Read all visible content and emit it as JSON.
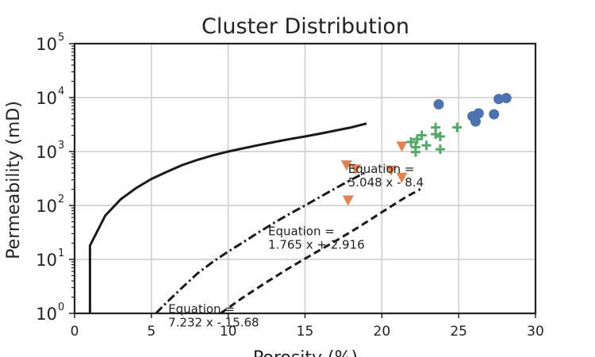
{
  "chart_data": {
    "type": "scatter",
    "title": "Cluster Distribution",
    "xlabel": "Porosity (%)",
    "ylabel": "Permeability (mD)",
    "xlim": [
      0,
      30
    ],
    "ylim": [
      1,
      100000
    ],
    "yscale": "log",
    "xticks": [
      "0",
      "5",
      "10",
      "15",
      "20",
      "25",
      "30"
    ],
    "yticks": [
      {
        "base": "10",
        "exp": "0"
      },
      {
        "base": "10",
        "exp": "1"
      },
      {
        "base": "10",
        "exp": "2"
      },
      {
        "base": "10",
        "exp": "3"
      },
      {
        "base": "10",
        "exp": "4"
      },
      {
        "base": "10",
        "exp": "5"
      }
    ],
    "grid": true,
    "series": [
      {
        "marker": "circle",
        "color": "#4c72b0",
        "points": [
          [
            23.7,
            7500
          ],
          [
            25.9,
            4500
          ],
          [
            26.1,
            3600
          ],
          [
            26.3,
            5100
          ],
          [
            27.3,
            4900
          ],
          [
            27.6,
            9400
          ],
          [
            28.1,
            9800
          ]
        ]
      },
      {
        "marker": "triangle-down",
        "color": "#dd8452",
        "points": [
          [
            21.3,
            1250
          ],
          [
            17.7,
            560
          ],
          [
            18.3,
            470
          ],
          [
            20.6,
            450
          ],
          [
            21.3,
            330
          ],
          [
            17.8,
            125
          ]
        ]
      },
      {
        "marker": "plus",
        "color": "#55a868",
        "points": [
          [
            21.9,
            1500
          ],
          [
            22.3,
            1700
          ],
          [
            22.6,
            2000
          ],
          [
            22.2,
            1200
          ],
          [
            22.9,
            1300
          ],
          [
            22.2,
            980
          ],
          [
            23.5,
            2800
          ],
          [
            23.5,
            2100
          ],
          [
            23.8,
            1900
          ],
          [
            23.8,
            1100
          ],
          [
            24.9,
            2800
          ]
        ]
      }
    ],
    "curves": [
      {
        "style": "solid",
        "points": [
          [
            1,
            1
          ],
          [
            1,
            18
          ],
          [
            2,
            65
          ],
          [
            3,
            130
          ],
          [
            4,
            210
          ],
          [
            5,
            310
          ],
          [
            6,
            420
          ],
          [
            7,
            560
          ],
          [
            8,
            700
          ],
          [
            9,
            850
          ],
          [
            10,
            1000
          ],
          [
            11,
            1150
          ],
          [
            12,
            1320
          ],
          [
            13,
            1500
          ],
          [
            14,
            1700
          ],
          [
            15,
            1900
          ],
          [
            16,
            2150
          ],
          [
            17,
            2450
          ],
          [
            18,
            2800
          ],
          [
            19,
            3300
          ]
        ]
      },
      {
        "style": "dashdot",
        "points": [
          [
            5.3,
            1
          ],
          [
            6,
            1.6
          ],
          [
            7,
            3
          ],
          [
            8,
            5.5
          ],
          [
            9,
            9
          ],
          [
            10,
            14
          ],
          [
            11,
            21
          ],
          [
            12,
            32
          ],
          [
            13,
            48
          ],
          [
            14,
            70
          ],
          [
            15,
            100
          ],
          [
            16,
            145
          ],
          [
            17,
            210
          ],
          [
            18,
            300
          ],
          [
            19,
            420
          ]
        ]
      },
      {
        "style": "dashed",
        "points": [
          [
            9.5,
            1
          ],
          [
            11,
            2
          ],
          [
            12.5,
            3.8
          ],
          [
            14,
            7
          ],
          [
            15.5,
            12.5
          ],
          [
            17,
            22
          ],
          [
            18.5,
            40
          ],
          [
            20,
            75
          ],
          [
            21.5,
            140
          ],
          [
            22.5,
            200
          ]
        ]
      }
    ],
    "annotations": [
      {
        "text": [
          "Equation =",
          "5.048 x - 8.4"
        ],
        "x": 17.8,
        "y": 400
      },
      {
        "text": [
          "Equation =",
          "1.765 x + 2.916"
        ],
        "x": 12.6,
        "y": 28
      },
      {
        "text": [
          "Equation =",
          "7.232 x - 15.68"
        ],
        "x": 6.1,
        "y": 1.02
      }
    ]
  }
}
